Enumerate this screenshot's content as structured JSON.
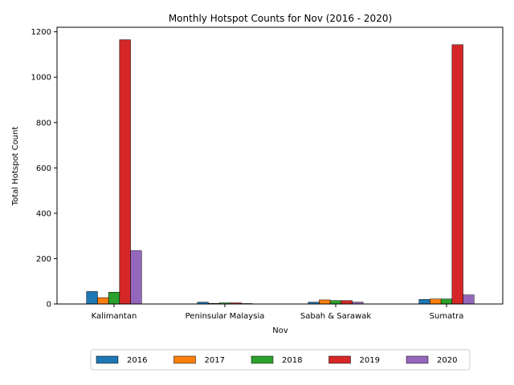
{
  "chart_data": {
    "type": "bar",
    "title": "Monthly Hotspot Counts for Nov (2016 - 2020)",
    "xlabel": "Nov",
    "ylabel": "Total Hotspot Count",
    "categories": [
      "Kalimantan",
      "Peninsular Malaysia",
      "Sabah & Sarawak",
      "Sumatra"
    ],
    "ylim": [
      0,
      1220
    ],
    "yticks": [
      0,
      200,
      400,
      600,
      800,
      1000,
      1200
    ],
    "grid": false,
    "legend_position": "bottom",
    "series": [
      {
        "name": "2016",
        "color": "#1f77b4",
        "values": [
          55,
          8,
          8,
          20
        ]
      },
      {
        "name": "2017",
        "color": "#ff7f0e",
        "values": [
          28,
          3,
          18,
          22
        ]
      },
      {
        "name": "2018",
        "color": "#2ca02c",
        "values": [
          52,
          5,
          15,
          22
        ]
      },
      {
        "name": "2019",
        "color": "#d62728",
        "values": [
          1165,
          5,
          15,
          1143
        ]
      },
      {
        "name": "2020",
        "color": "#9467bd",
        "values": [
          235,
          2,
          8,
          40
        ]
      }
    ]
  }
}
